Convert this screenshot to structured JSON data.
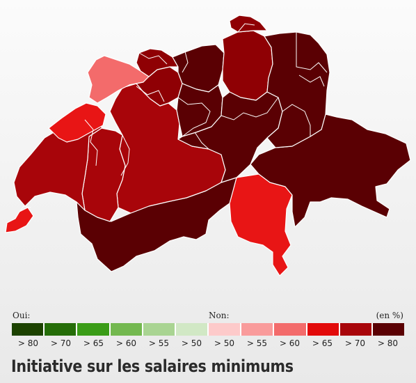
{
  "map": {
    "colors": {
      "dark": "#5a0003",
      "darkred": "#8f0004",
      "red": "#a8050a",
      "bright": "#e81515",
      "pink": "#f36b6b"
    }
  },
  "legend": {
    "yes_label": "Oui:",
    "no_label": "Non:",
    "unit": "(en %)",
    "classes": [
      {
        "label": "> 80",
        "color": "#1c4200"
      },
      {
        "label": "> 70",
        "color": "#256d08"
      },
      {
        "label": "> 65",
        "color": "#3a9c17"
      },
      {
        "label": "> 60",
        "color": "#73b84f"
      },
      {
        "label": "> 55",
        "color": "#a9d492"
      },
      {
        "label": "> 50",
        "color": "#d1e8c5"
      },
      {
        "label": "> 50",
        "color": "#fdcaca"
      },
      {
        "label": "> 55",
        "color": "#f99b9b"
      },
      {
        "label": "> 60",
        "color": "#f36b6b"
      },
      {
        "label": "> 65",
        "color": "#e20a0a"
      },
      {
        "label": "> 70",
        "color": "#a8050a"
      },
      {
        "label": "> 80",
        "color": "#5a0003"
      }
    ]
  },
  "title": "Initiative sur les salaires minimums"
}
